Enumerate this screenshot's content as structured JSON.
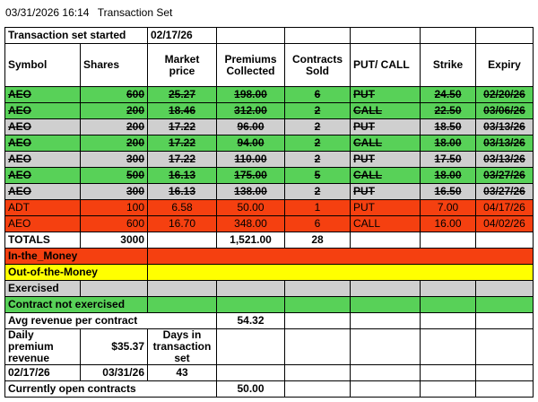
{
  "header": {
    "datetime": "03/31/2026 16:14",
    "title": "Transaction Set"
  },
  "started": {
    "label": "Transaction set started",
    "date": "02/17/26"
  },
  "columns": {
    "symbol": "Symbol",
    "shares": "Shares",
    "market_price": "Market price",
    "premiums": "Premiums Collected",
    "contracts": "Contracts Sold",
    "putcall": "PUT/ CALL",
    "strike": "Strike",
    "expiry": "Expiry"
  },
  "rows": [
    {
      "symbol": "AEO",
      "shares": "600",
      "price": "25.27",
      "premium": "198.00",
      "contracts": "6",
      "type": "PUT",
      "strike": "24.50",
      "expiry": "02/20/26",
      "color": "green",
      "struck": true
    },
    {
      "symbol": "AEO",
      "shares": "200",
      "price": "18.46",
      "premium": "312.00",
      "contracts": "2",
      "type": "CALL",
      "strike": "22.50",
      "expiry": "03/06/26",
      "color": "green",
      "struck": true
    },
    {
      "symbol": "AEO",
      "shares": "200",
      "price": "17.22",
      "premium": "96.00",
      "contracts": "2",
      "type": "PUT",
      "strike": "18.50",
      "expiry": "03/13/26",
      "color": "gray",
      "struck": true
    },
    {
      "symbol": "AEO",
      "shares": "200",
      "price": "17.22",
      "premium": "94.00",
      "contracts": "2",
      "type": "CALL",
      "strike": "18.00",
      "expiry": "03/13/26",
      "color": "green",
      "struck": true
    },
    {
      "symbol": "AEO",
      "shares": "300",
      "price": "17.22",
      "premium": "110.00",
      "contracts": "2",
      "type": "PUT",
      "strike": "17.50",
      "expiry": "03/13/26",
      "color": "gray",
      "struck": true
    },
    {
      "symbol": "AEO",
      "shares": "500",
      "price": "16.13",
      "premium": "175.00",
      "contracts": "5",
      "type": "CALL",
      "strike": "18.00",
      "expiry": "03/27/26",
      "color": "green",
      "struck": true
    },
    {
      "symbol": "AEO",
      "shares": "300",
      "price": "16.13",
      "premium": "138.00",
      "contracts": "2",
      "type": "PUT",
      "strike": "16.50",
      "expiry": "03/27/26",
      "color": "gray",
      "struck": true
    },
    {
      "symbol": "ADT",
      "shares": "100",
      "price": "6.58",
      "premium": "50.00",
      "contracts": "1",
      "type": "PUT",
      "strike": "7.00",
      "expiry": "04/17/26",
      "color": "red",
      "struck": false
    },
    {
      "symbol": "AEO",
      "shares": "600",
      "price": "16.70",
      "premium": "348.00",
      "contracts": "6",
      "type": "CALL",
      "strike": "16.00",
      "expiry": "04/02/26",
      "color": "red",
      "struck": false
    }
  ],
  "totals": {
    "label": "TOTALS",
    "shares": "3000",
    "premium": "1,521.00",
    "contracts": "28"
  },
  "legend": {
    "in_money": "In-the_Money",
    "out_money": "Out-of-the-Money",
    "exercised": "Exercised",
    "not_exercised": "Contract not exercised"
  },
  "avg": {
    "label": "Avg revenue per contract",
    "value": "54.32"
  },
  "daily": {
    "label": "Daily premium revenue",
    "value": "$35.37",
    "days_label": "Days in transaction set"
  },
  "dates": {
    "start": "02/17/26",
    "end": "03/31/26",
    "days": "43"
  },
  "open": {
    "label": "Currently open contracts",
    "value": "50.00"
  },
  "colors": {
    "green": "#58d158",
    "gray": "#cfcfcf",
    "red": "#f54010",
    "yellow": "#ffff00"
  }
}
